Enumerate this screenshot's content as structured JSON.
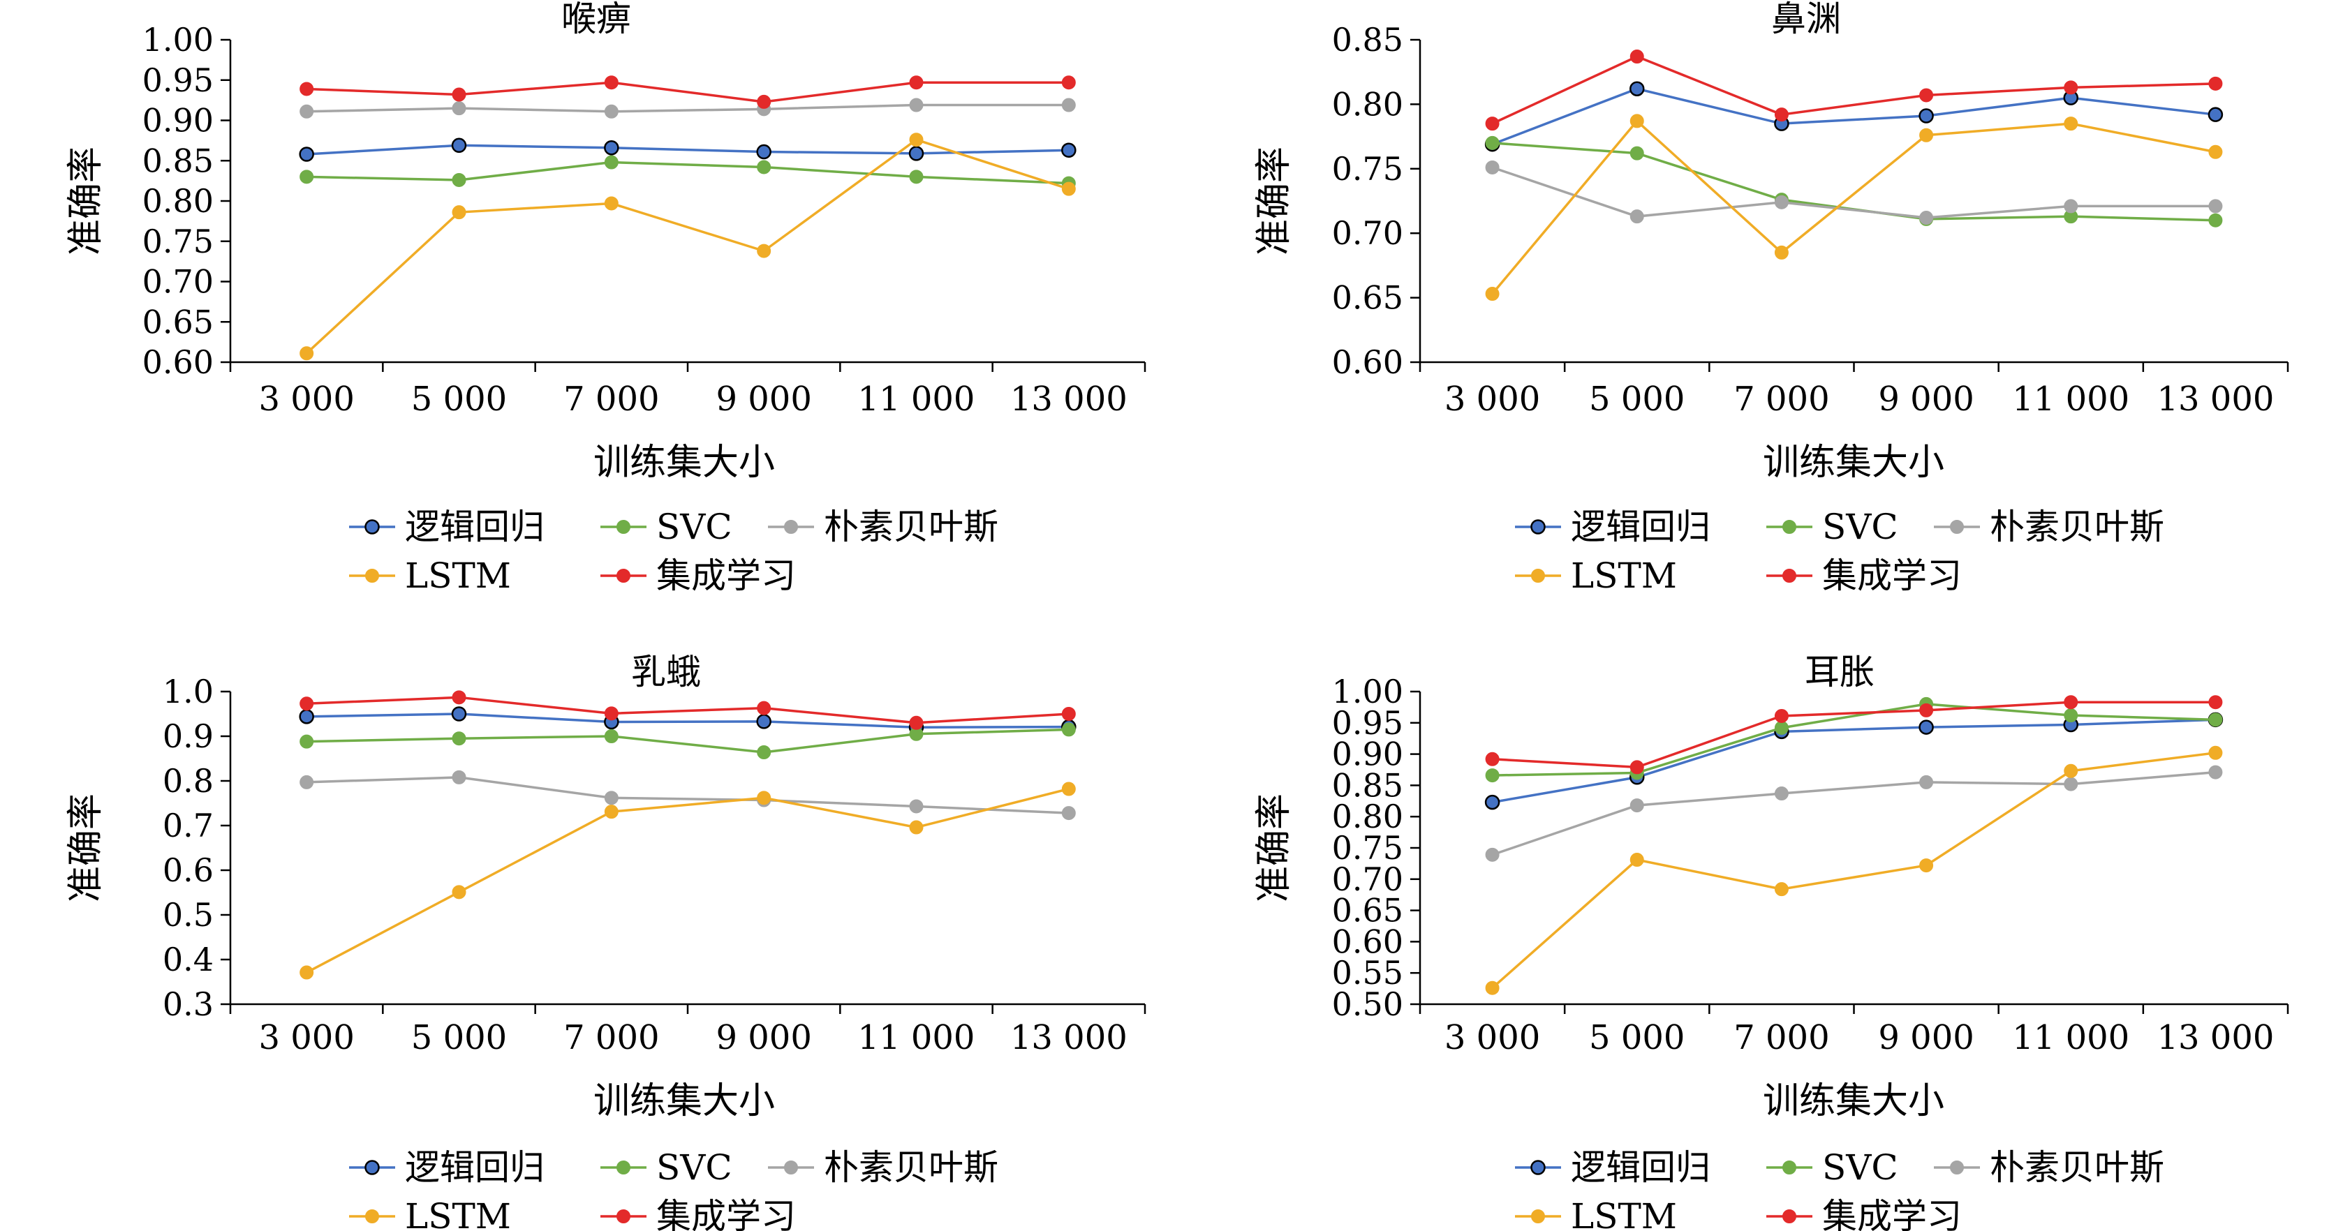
{
  "colors": {
    "logistic": "#4472C4",
    "svc": "#70AD47",
    "nb": "#A5A5A5",
    "lstm": "#F0AC26",
    "ensemble": "#E32A2A",
    "axis": "#000000"
  },
  "legend_labels": [
    "逻辑回归",
    "SVC",
    "朴素贝叶斯",
    "LSTM",
    "集成学习"
  ],
  "chart_data": [
    {
      "type": "line",
      "title": "喉痹",
      "xlabel": "训练集大小",
      "ylabel": "准确率",
      "categories": [
        "3 000",
        "5 000",
        "7 000",
        "9 000",
        "11 000",
        "13 000"
      ],
      "ylim": [
        0.6,
        1.0
      ],
      "yticks": [
        "0.60",
        "0.65",
        "0.70",
        "0.75",
        "0.80",
        "0.85",
        "0.90",
        "0.95",
        "1.00"
      ],
      "legend_position": "bottom",
      "grid": false,
      "series": [
        {
          "name": "逻辑回归",
          "values": [
            0.858,
            0.869,
            0.866,
            0.861,
            0.859,
            0.863
          ]
        },
        {
          "name": "SVC",
          "values": [
            0.83,
            0.826,
            0.848,
            0.842,
            0.83,
            0.822
          ]
        },
        {
          "name": "朴素贝叶斯",
          "values": [
            0.911,
            0.915,
            0.911,
            0.914,
            0.919,
            0.919
          ]
        },
        {
          "name": "LSTM",
          "values": [
            0.611,
            0.786,
            0.797,
            0.738,
            0.876,
            0.815
          ]
        },
        {
          "name": "集成学习",
          "values": [
            0.939,
            0.932,
            0.947,
            0.923,
            0.947,
            0.947
          ]
        }
      ]
    },
    {
      "type": "line",
      "title": "鼻渊",
      "xlabel": "训练集大小",
      "ylabel": "准确率",
      "categories": [
        "3 000",
        "5 000",
        "7 000",
        "9 000",
        "11 000",
        "13 000"
      ],
      "ylim": [
        0.6,
        0.85
      ],
      "yticks": [
        "0.60",
        "0.65",
        "0.70",
        "0.75",
        "0.80",
        "0.85"
      ],
      "legend_position": "bottom",
      "grid": false,
      "series": [
        {
          "name": "逻辑回归",
          "values": [
            0.769,
            0.812,
            0.785,
            0.791,
            0.805,
            0.792
          ]
        },
        {
          "name": "SVC",
          "values": [
            0.77,
            0.762,
            0.726,
            0.711,
            0.713,
            0.71
          ]
        },
        {
          "name": "朴素贝叶斯",
          "values": [
            0.751,
            0.713,
            0.724,
            0.712,
            0.721,
            0.721
          ]
        },
        {
          "name": "LSTM",
          "values": [
            0.653,
            0.787,
            0.685,
            0.776,
            0.785,
            0.763
          ]
        },
        {
          "name": "集成学习",
          "values": [
            0.785,
            0.837,
            0.792,
            0.807,
            0.813,
            0.816
          ]
        }
      ]
    },
    {
      "type": "line",
      "title": "乳蛾",
      "xlabel": "训练集大小",
      "ylabel": "准确率",
      "categories": [
        "3 000",
        "5 000",
        "7 000",
        "9 000",
        "11 000",
        "13 000"
      ],
      "ylim": [
        0.3,
        1.0
      ],
      "yticks": [
        "0.3",
        "0.4",
        "0.5",
        "0.6",
        "0.7",
        "0.8",
        "0.9",
        "1.0"
      ],
      "legend_position": "bottom",
      "grid": false,
      "series": [
        {
          "name": "逻辑回归",
          "values": [
            0.944,
            0.95,
            0.932,
            0.933,
            0.92,
            0.921
          ]
        },
        {
          "name": "SVC",
          "values": [
            0.888,
            0.895,
            0.9,
            0.864,
            0.905,
            0.915
          ]
        },
        {
          "name": "朴素贝叶斯",
          "values": [
            0.797,
            0.808,
            0.762,
            0.757,
            0.743,
            0.728
          ]
        },
        {
          "name": "LSTM",
          "values": [
            0.371,
            0.551,
            0.731,
            0.762,
            0.696,
            0.782
          ]
        },
        {
          "name": "集成学习",
          "values": [
            0.973,
            0.987,
            0.951,
            0.963,
            0.93,
            0.95
          ]
        }
      ]
    },
    {
      "type": "line",
      "title": "耳胀",
      "xlabel": "训练集大小",
      "ylabel": "准确率",
      "categories": [
        "3 000",
        "5 000",
        "7 000",
        "9 000",
        "11 000",
        "13 000"
      ],
      "ylim": [
        0.5,
        1.0
      ],
      "yticks": [
        "0.50",
        "0.55",
        "0.60",
        "0.65",
        "0.70",
        "0.75",
        "0.80",
        "0.85",
        "0.90",
        "0.95",
        "1.00"
      ],
      "legend_position": "bottom",
      "grid": false,
      "series": [
        {
          "name": "逻辑回归",
          "values": [
            0.823,
            0.863,
            0.936,
            0.943,
            0.947,
            0.955
          ]
        },
        {
          "name": "SVC",
          "values": [
            0.866,
            0.87,
            0.942,
            0.98,
            0.962,
            0.955
          ]
        },
        {
          "name": "朴素贝叶斯",
          "values": [
            0.739,
            0.818,
            0.837,
            0.855,
            0.852,
            0.871
          ]
        },
        {
          "name": "LSTM",
          "values": [
            0.526,
            0.731,
            0.684,
            0.722,
            0.873,
            0.902
          ]
        },
        {
          "name": "集成学习",
          "values": [
            0.892,
            0.879,
            0.961,
            0.97,
            0.983,
            0.983
          ]
        }
      ]
    }
  ]
}
